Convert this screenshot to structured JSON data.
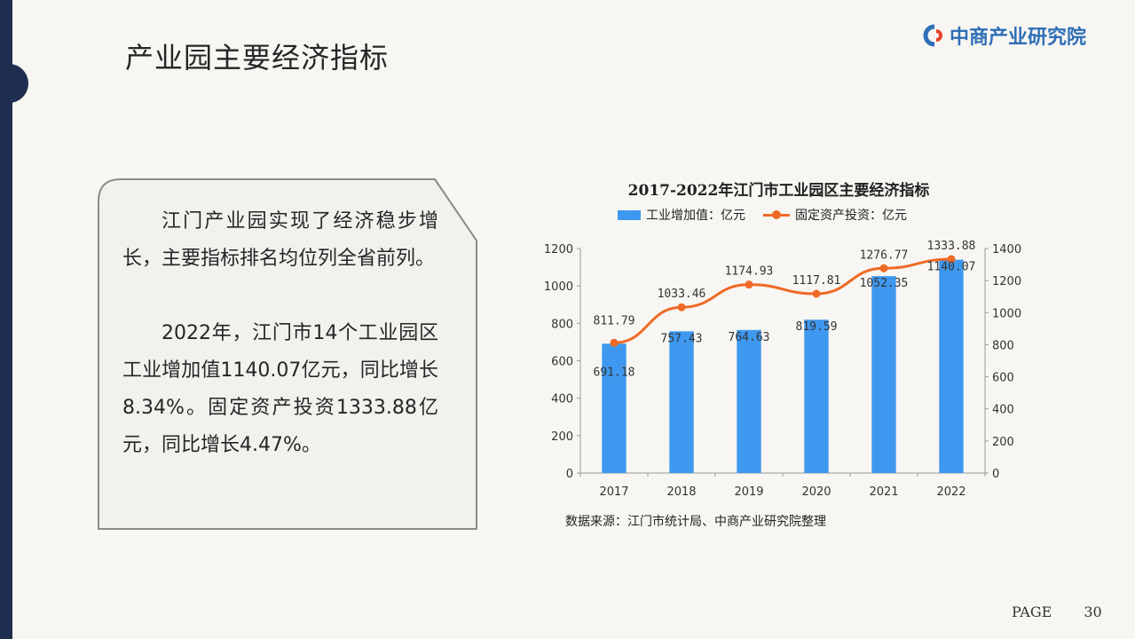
{
  "slide": {
    "title": "产业园主要经济指标",
    "logo_text": "中商产业研究院",
    "page_label": "PAGE",
    "page_number": "30"
  },
  "text_card": {
    "paragraph1": "江门产业园实现了经济稳步增长，主要指标排名均位列全省前列。",
    "paragraph2": "2022年，江门市14个工业园区工业增加值1140.07亿元，同比增长8.34%。固定资产投资1333.88亿元，同比增长4.47%。"
  },
  "chart_data": {
    "type": "bar",
    "title": "2017-2022年江门市工业园区主要经济指标",
    "categories": [
      "2017",
      "2018",
      "2019",
      "2020",
      "2021",
      "2022"
    ],
    "series": [
      {
        "name": "工业增加值：亿元",
        "type": "bar",
        "axis": "left",
        "color": "#3f98ef",
        "values": [
          691.18,
          757.43,
          764.63,
          819.59,
          1052.35,
          1140.07
        ]
      },
      {
        "name": "固定资产投资：亿元",
        "type": "line",
        "axis": "right",
        "color": "#ef6a26",
        "values": [
          811.79,
          1033.46,
          1174.93,
          1117.81,
          1276.77,
          1333.88
        ]
      }
    ],
    "y_left": {
      "min": 0,
      "max": 1200,
      "ticks": [
        0,
        200,
        400,
        600,
        800,
        1000,
        1200
      ]
    },
    "y_right": {
      "min": 0,
      "max": 1400,
      "ticks": [
        0,
        200,
        400,
        600,
        800,
        1000,
        1200,
        1400
      ]
    },
    "bar_labels": [
      "691.18",
      "757.43",
      "764.63",
      "819.59",
      "1052.35",
      "1140.07"
    ],
    "line_labels": [
      "811.79",
      "1033.46",
      "1174.93",
      "1117.81",
      "1276.77",
      "1333.88"
    ],
    "legend_position": "top",
    "grid": false,
    "source": "数据来源：江门市统计局、中商产业研究院整理"
  }
}
